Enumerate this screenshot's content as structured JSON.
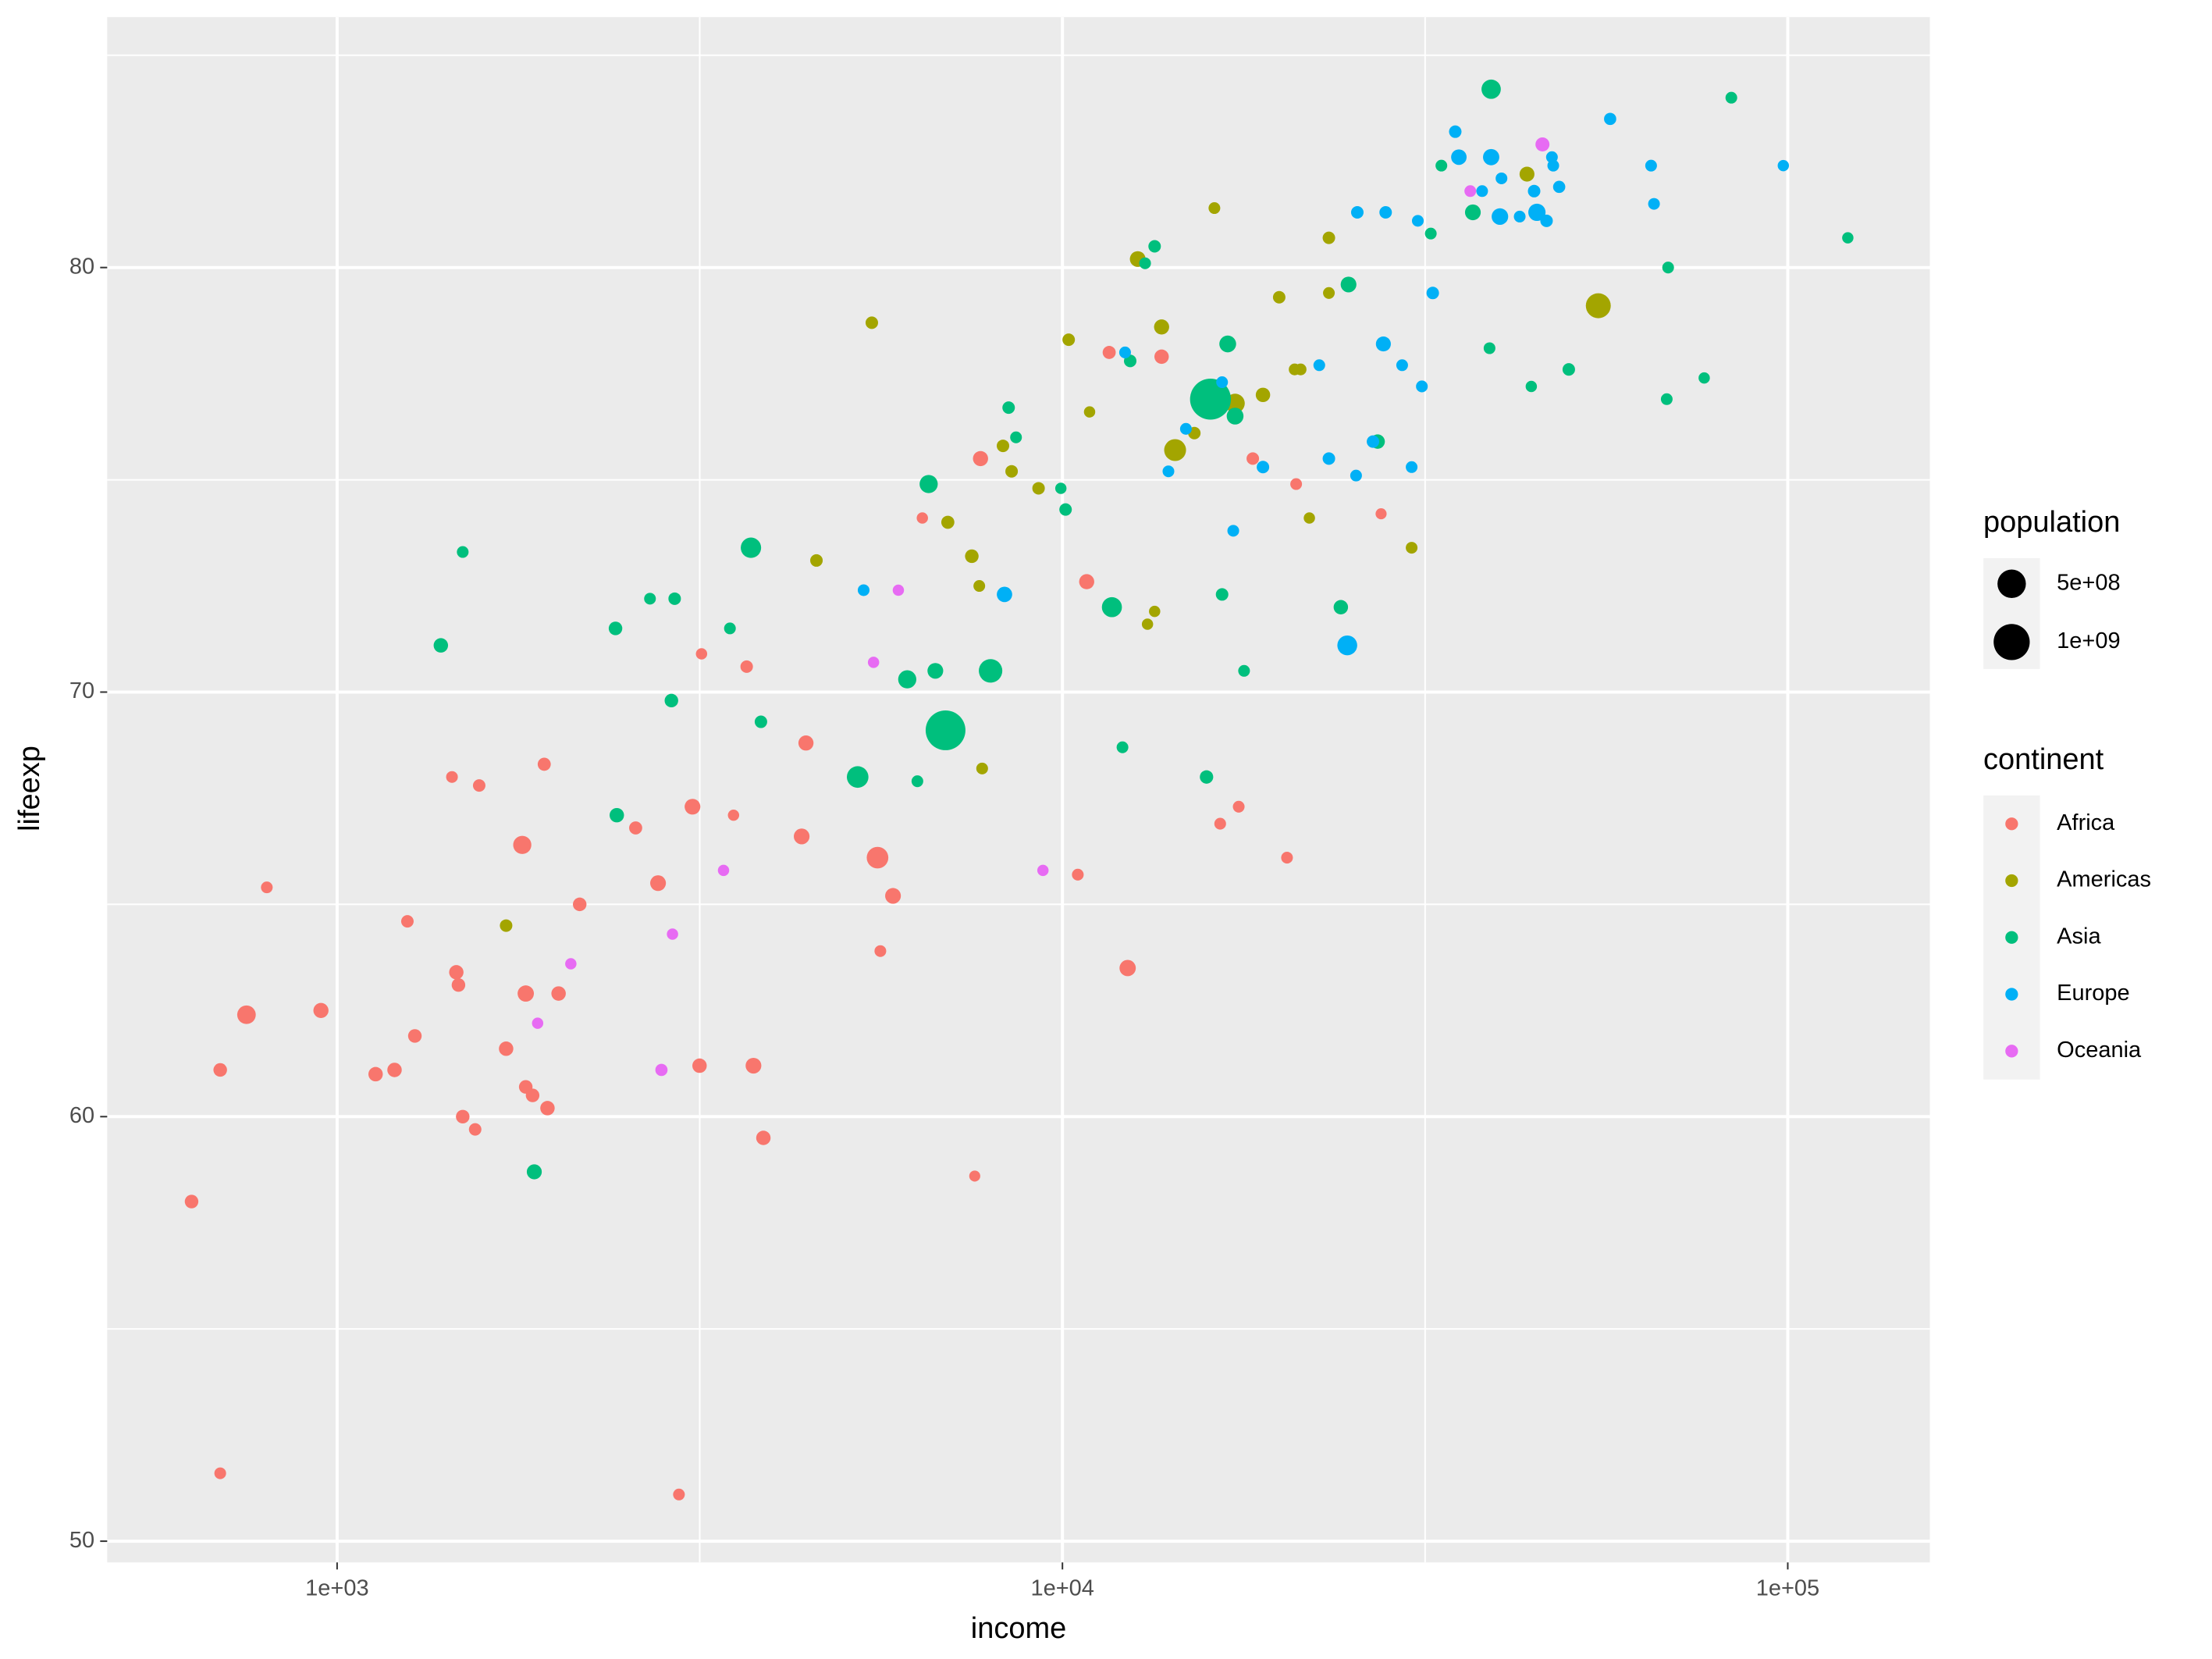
{
  "chart_data": {
    "type": "scatter",
    "x_label": "income",
    "y_label": "lifeexp",
    "xscale": "log",
    "xlim": [
      482,
      157000
    ],
    "ylim": [
      49.5,
      85.9
    ],
    "xticks": [
      {
        "value": 1000,
        "label": "1e+03"
      },
      {
        "value": 10000,
        "label": "1e+04"
      },
      {
        "value": 100000,
        "label": "1e+05"
      }
    ],
    "yticks": [
      50,
      60,
      70,
      80
    ],
    "x_minor_ticks": [
      3162,
      31623
    ],
    "y_minor_ticks": [
      55,
      65,
      75,
      85
    ],
    "grid": true,
    "legend_position": "right",
    "size_legend": {
      "title": "population",
      "breaks": [
        {
          "value": 500000000,
          "label": "5e+08"
        },
        {
          "value": 1000000000,
          "label": "1e+09"
        }
      ]
    },
    "color_legend_title": "continent",
    "series": [
      {
        "name": "Africa",
        "color": "#F8766D",
        "x": [
          630,
          690,
          690,
          750,
          800,
          950,
          1130,
          1200,
          1250,
          1280,
          1440,
          1460,
          1470,
          1490,
          1550,
          1570,
          1710,
          1800,
          1820,
          1820,
          1860,
          1930,
          1950,
          2020,
          2160,
          2580,
          2770,
          2960,
          3090,
          3160,
          3180,
          3520,
          3670,
          3750,
          3870,
          4370,
          4430,
          5560,
          5610,
          5840,
          6410,
          7570,
          7710,
          10800,
          10500,
          11600,
          12300,
          13700,
          16500,
          17500,
          18300,
          20400,
          21000,
          27500
        ],
        "values": [
          58.0,
          51.6,
          61.1,
          62.4,
          65.4,
          62.5,
          61.0,
          61.1,
          64.6,
          61.9,
          68.0,
          63.4,
          63.1,
          60.0,
          59.7,
          67.8,
          61.6,
          66.4,
          62.9,
          60.7,
          60.5,
          68.3,
          60.2,
          62.9,
          65.0,
          66.8,
          65.5,
          51.1,
          67.3,
          61.2,
          70.9,
          67.1,
          70.6,
          61.2,
          59.5,
          66.6,
          68.8,
          66.1,
          63.9,
          65.2,
          74.1,
          58.6,
          75.5,
          72.6,
          65.7,
          78.0,
          63.5,
          77.9,
          66.9,
          67.3,
          75.5,
          66.1,
          74.9,
          74.2
        ],
        "sizes": [
          20000000.0,
          5000000.0,
          20000000.0,
          110000000.0,
          5000000.0,
          40000000.0,
          30000000.0,
          30000000.0,
          10000000.0,
          20000000.0,
          5000000.0,
          30000000.0,
          20000000.0,
          20000000.0,
          10000000.0,
          10000000.0,
          30000000.0,
          100000000.0,
          60000000.0,
          20000000.0,
          20000000.0,
          15000000.0,
          30000000.0,
          30000000.0,
          20000000.0,
          15000000.0,
          50000000.0,
          5000000.0,
          50000000.0,
          30000000.0,
          3000000.0,
          3000000.0,
          10000000.0,
          50000000.0,
          30000000.0,
          50000000.0,
          40000000.0,
          200000000.0,
          5000000.0,
          50000000.0,
          3000000.0,
          2000000.0,
          40000000.0,
          40000000.0,
          5000000.0,
          15000000.0,
          60000000.0,
          30000000.0,
          5000000.0,
          5000000.0,
          10000000.0,
          5000000.0,
          5000000.0,
          2000000.0
        ]
      },
      {
        "name": "Americas",
        "color": "#A3A500",
        "x": [
          1710,
          4580,
          5460,
          6950,
          7500,
          7680,
          7750,
          8280,
          8510,
          9270,
          10200,
          10900,
          12700,
          13100,
          13400,
          13700,
          14300,
          15200,
          15900,
          16200,
          17300,
          18900,
          19900,
          20900,
          21300,
          21900,
          23300,
          23300,
          30300,
          43700,
          54800
        ],
        "values": [
          64.5,
          73.1,
          78.7,
          74.0,
          73.2,
          72.5,
          68.2,
          75.8,
          75.2,
          74.8,
          78.3,
          76.6,
          80.2,
          71.6,
          71.9,
          78.6,
          75.7,
          76.1,
          76.8,
          81.4,
          76.8,
          77.0,
          79.3,
          77.6,
          77.6,
          74.1,
          80.7,
          79.4,
          73.4,
          82.2,
          79.1
        ],
        "sizes": [
          10000000.0,
          10000000.0,
          10000000.0,
          15000000.0,
          20000000.0,
          5000000.0,
          5000000.0,
          10000000.0,
          10000000.0,
          10000000.0,
          10000000.0,
          3000000.0,
          50000000.0,
          3000000.0,
          3000000.0,
          40000000.0,
          210000000.0,
          10000000.0,
          3000000.0,
          5000000.0,
          130000000.0,
          30000000.0,
          10000000.0,
          5000000.0,
          5000000.0,
          3000000.0,
          10000000.0,
          5000000.0,
          5000000.0,
          37000000.0,
          330000000.0
        ]
      },
      {
        "name": "Asia",
        "color": "#00BF7D",
        "x": [
          1390,
          1490,
          1870,
          2420,
          2430,
          2700,
          2920,
          2890,
          3480,
          3720,
          3840,
          5220,
          6110,
          6310,
          6540,
          6680,
          6900,
          7960,
          8430,
          8630,
          9950,
          10100,
          11700,
          12100,
          12400,
          13000,
          13400,
          15800,
          16000,
          16600,
          16900,
          17300,
          17800,
          24200,
          24800,
          27200,
          32200,
          33300,
          36800,
          38800,
          39000,
          44300,
          49900,
          68100,
          68400,
          76700,
          83600,
          121000
        ],
        "values": [
          71.1,
          73.3,
          58.7,
          71.5,
          67.1,
          72.2,
          72.2,
          69.8,
          71.5,
          73.4,
          69.3,
          68.0,
          70.3,
          67.9,
          74.9,
          70.5,
          69.1,
          70.5,
          76.7,
          76.0,
          74.8,
          74.3,
          72.0,
          68.7,
          77.8,
          80.1,
          80.5,
          68.0,
          76.9,
          72.3,
          78.2,
          76.5,
          70.5,
          72.0,
          79.6,
          75.9,
          80.8,
          82.4,
          81.3,
          78.1,
          84.2,
          77.2,
          77.6,
          76.9,
          80.0,
          77.4,
          84.0,
          80.7
        ],
        "sizes": [
          30000000.0,
          5000000.0,
          38000000.0,
          20000000.0,
          30000000.0,
          5000000.0,
          10000000.0,
          20000000.0,
          5000000.0,
          160000000.0,
          10000000.0,
          200000000.0,
          100000000.0,
          5000000.0,
          100000000.0,
          50000000.0,
          1300000000.0,
          270000000.0,
          10000000.0,
          5000000.0,
          3000000.0,
          10000000.0,
          150000000.0,
          5000000.0,
          10000000.0,
          5000000.0,
          10000000.0,
          18000000.0,
          1400000000.0,
          10000000.0,
          70000000.0,
          70000000.0,
          5000000.0,
          30000000.0,
          50000000.0,
          30000000.0,
          5000000.0,
          5000000.0,
          50000000.0,
          5000000.0,
          130000000.0,
          3000000.0,
          10000000.0,
          5000000.0,
          5000000.0,
          3000000.0,
          5000000.0,
          3000000.0
        ]
      },
      {
        "name": "Europe",
        "color": "#00B0F6",
        "x": [
          5320,
          8320,
          12200,
          14000,
          14800,
          16600,
          17200,
          18900,
          22600,
          23300,
          24700,
          25400,
          25500,
          26800,
          27700,
          27900,
          29400,
          30300,
          30900,
          31300,
          32400,
          34800,
          35200,
          37900,
          39000,
          40100,
          40300,
          42700,
          44700,
          45100,
          46500,
          47300,
          47500,
          48400,
          56900,
          64800,
          65400,
          98600
        ],
        "values": [
          72.4,
          72.3,
          78.0,
          75.2,
          76.2,
          77.3,
          73.8,
          75.3,
          77.7,
          75.5,
          71.1,
          75.1,
          81.3,
          75.9,
          78.2,
          81.3,
          77.7,
          75.3,
          81.1,
          77.2,
          79.4,
          83.2,
          82.6,
          81.8,
          82.6,
          81.2,
          82.1,
          81.2,
          81.8,
          81.3,
          81.1,
          82.6,
          82.4,
          81.9,
          83.5,
          82.4,
          81.5,
          82.4
        ],
        "sizes": [
          5000000.0,
          44000000.0,
          5000000.0,
          5000000.0,
          5000000.0,
          5000000.0,
          5000000.0,
          10000000.0,
          5000000.0,
          10000000.0,
          145000000.0,
          5000000.0,
          10000000.0,
          10000000.0,
          38000000.0,
          10000000.0,
          5000000.0,
          5000000.0,
          5000000.0,
          5000000.0,
          10000000.0,
          10000000.0,
          46000000.0,
          5000000.0,
          60000000.0,
          65000000.0,
          5000000.0,
          5000000.0,
          10000000.0,
          80000000.0,
          10000000.0,
          5000000.0,
          5000000.0,
          8000000.0,
          8000000.0,
          5000000.0,
          5000000.0,
          3000000.0
        ]
      },
      {
        "name": "Oceania",
        "color": "#E76BF3",
        "x": [
          1890,
          2100,
          2800,
          2900,
          3410,
          5490,
          5940,
          9400,
          36500,
          45900
        ],
        "values": [
          62.2,
          63.6,
          61.1,
          64.3,
          65.8,
          70.7,
          72.4,
          65.8,
          81.8,
          82.9
        ],
        "sizes": [
          3000000.0,
          3000000.0,
          8000000.0,
          3000000.0,
          3000000.0,
          3000000.0,
          3000000.0,
          3000000.0,
          5000000.0,
          25000000.0
        ]
      }
    ]
  }
}
